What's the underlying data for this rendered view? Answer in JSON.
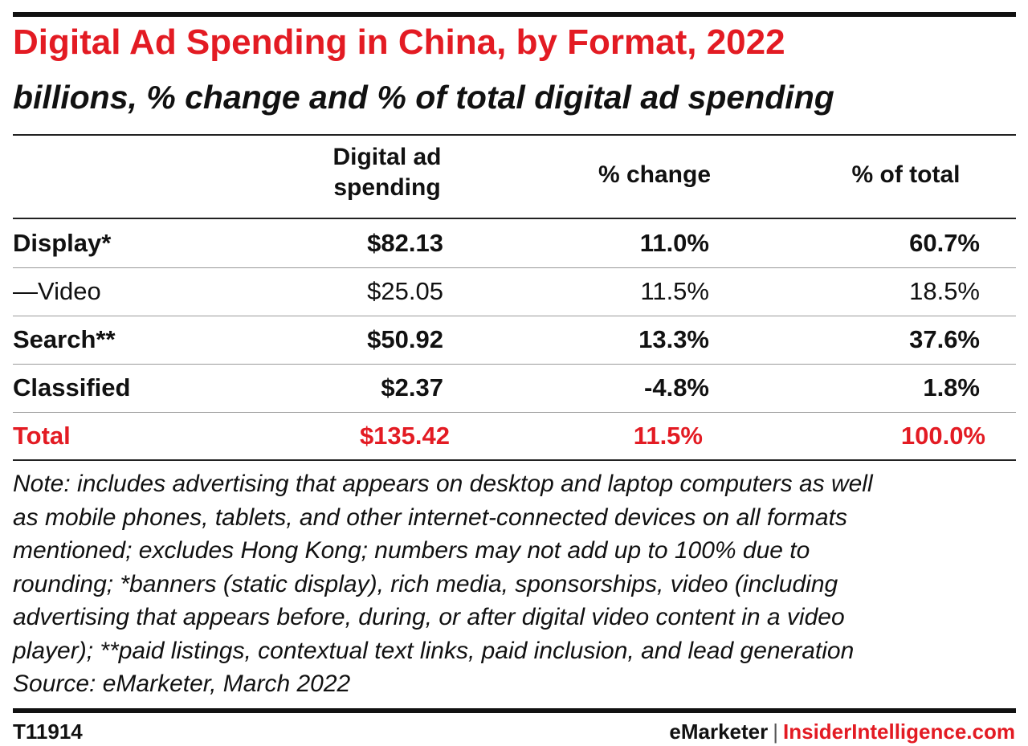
{
  "title": "Digital Ad Spending in China, by Format, 2022",
  "subtitle": "billions, % change and % of total digital ad spending",
  "columns": [
    "Digital ad spending",
    "% change",
    "% of total"
  ],
  "rows": [
    {
      "label": "Display*",
      "spend": "$82.13",
      "change": "11.0%",
      "share": "60.7%"
    },
    {
      "label": "—Video",
      "spend": "$25.05",
      "change": "11.5%",
      "share": "18.5%"
    },
    {
      "label": "Search**",
      "spend": "$50.92",
      "change": "13.3%",
      "share": "37.6%"
    },
    {
      "label": "Classified",
      "spend": "$2.37",
      "change": "-4.8%",
      "share": "1.8%"
    },
    {
      "label": "Total",
      "spend": "$135.42",
      "change": "11.5%",
      "share": "100.0%"
    }
  ],
  "note_lines": [
    "Note: includes advertising that appears on desktop and laptop computers as well",
    "as mobile phones, tablets, and other internet-connected devices on all formats",
    "mentioned; excludes Hong Kong; numbers may not add up to 100% due to",
    "rounding; *banners (static display), rich media, sponsorships, video (including",
    "advertising that appears before, during, or after digital video content in a video",
    "player); **paid listings, contextual text links, paid inclusion, and lead generation",
    "Source: eMarketer, March 2022"
  ],
  "footer": {
    "id": "T11914",
    "brand_left": "eMarketer",
    "separator": "|",
    "brand_right": "InsiderIntelligence.com"
  },
  "colors": {
    "accent": "#e31b23",
    "text": "#111111"
  },
  "chart_data": {
    "type": "table",
    "title": "Digital Ad Spending in China, by Format, 2022",
    "subtitle": "billions, % change and % of total digital ad spending",
    "columns": [
      "Digital ad spending",
      "% change",
      "% of total"
    ],
    "categories": [
      "Display*",
      "—Video",
      "Search**",
      "Classified",
      "Total"
    ],
    "series": [
      {
        "name": "Digital ad spending",
        "values": [
          82.13,
          25.05,
          50.92,
          2.37,
          135.42
        ]
      },
      {
        "name": "% change",
        "values": [
          11.0,
          11.5,
          13.3,
          -4.8,
          11.5
        ]
      },
      {
        "name": "% of total",
        "values": [
          60.7,
          18.5,
          37.6,
          1.8,
          100.0
        ]
      }
    ]
  }
}
